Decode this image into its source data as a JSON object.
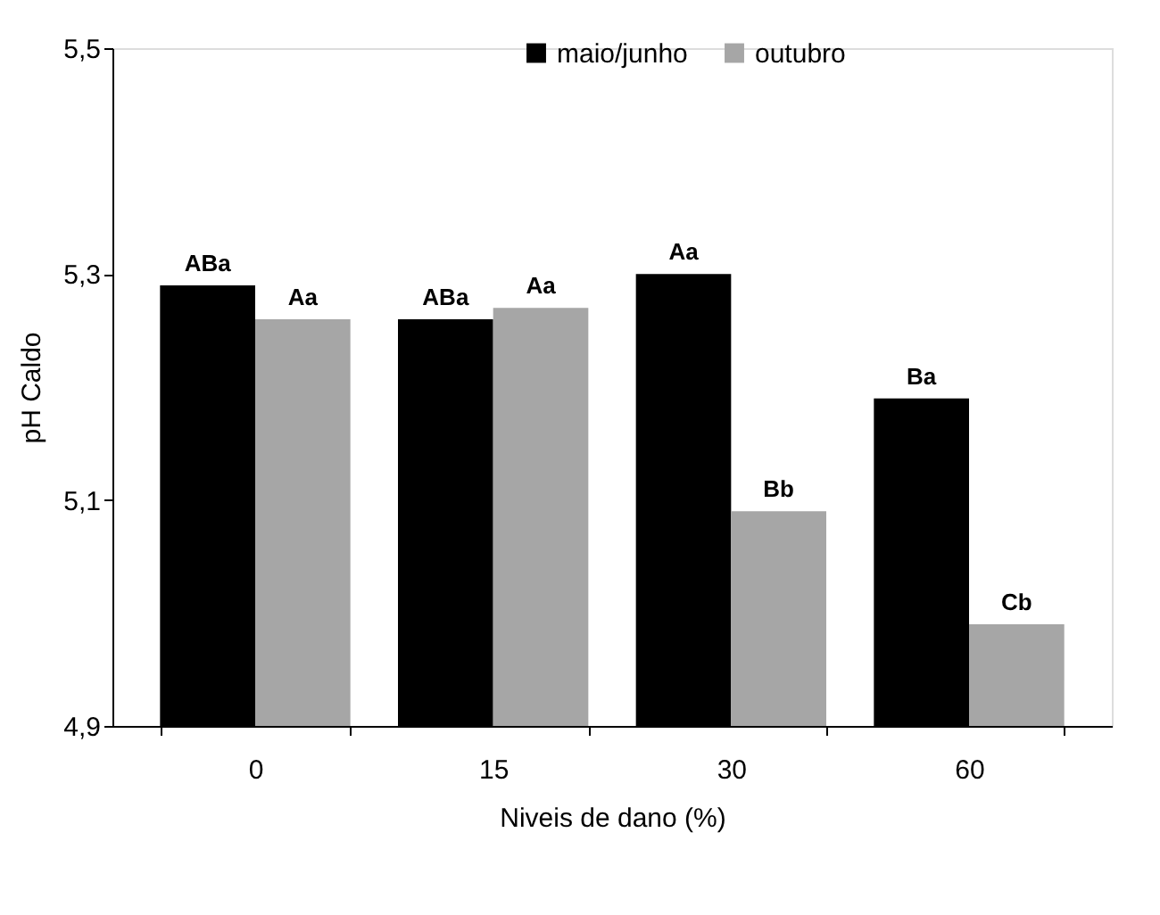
{
  "chart_data": {
    "type": "bar",
    "xlabel": "Niveis de dano (%)",
    "ylabel": "pH Caldo",
    "categories": [
      "0",
      "15",
      "30",
      "60"
    ],
    "series": [
      {
        "name": "maio/junho",
        "color": "#000000",
        "values": [
          5.29,
          5.26,
          5.3,
          5.19
        ],
        "value_labels": [
          "ABa",
          "ABa",
          "Aa",
          "Ba"
        ]
      },
      {
        "name": "outubro",
        "color": "#a6a6a6",
        "values": [
          5.26,
          5.27,
          5.09,
          4.99
        ],
        "value_labels": [
          "Aa",
          "Aa",
          "Bb",
          "Cb"
        ]
      }
    ],
    "ylim": [
      4.9,
      5.5
    ],
    "yticks": [
      {
        "value": 4.9,
        "label": "4,9"
      },
      {
        "value": 5.1,
        "label": "5,1"
      },
      {
        "value": 5.3,
        "label": "5,3"
      },
      {
        "value": 5.5,
        "label": "5,5"
      }
    ],
    "grid": false,
    "legend": "top"
  }
}
